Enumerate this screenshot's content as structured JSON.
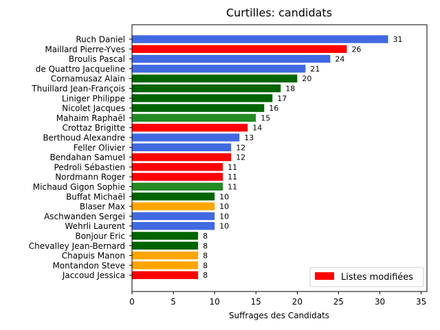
{
  "chart_data": {
    "type": "bar",
    "orientation": "horizontal",
    "title": "Curtilles: candidats",
    "xlabel": "Suffrages des Candidats",
    "ylabel": "",
    "xlim": [
      0,
      35.7
    ],
    "xticks": [
      0,
      5,
      10,
      15,
      20,
      25,
      30,
      35
    ],
    "grid": false,
    "legend": {
      "placement": "lower-right",
      "entries": [
        {
          "label": "Listes modifiées",
          "color": "#ff0000"
        }
      ]
    },
    "bars": [
      {
        "name": "Ruch Daniel",
        "value": 31,
        "color": "#4169e1"
      },
      {
        "name": "Maillard Pierre-Yves",
        "value": 26,
        "color": "#ff0000"
      },
      {
        "name": "Broulis Pascal",
        "value": 24,
        "color": "#4169e1"
      },
      {
        "name": "de Quattro Jacqueline",
        "value": 21,
        "color": "#4169e1"
      },
      {
        "name": "Cornamusaz Alain",
        "value": 20,
        "color": "#006400"
      },
      {
        "name": "Thuillard Jean-François",
        "value": 18,
        "color": "#006400"
      },
      {
        "name": "Liniger Philippe",
        "value": 17,
        "color": "#006400"
      },
      {
        "name": "Nicolet Jacques",
        "value": 16,
        "color": "#006400"
      },
      {
        "name": "Mahaim Raphaël",
        "value": 15,
        "color": "#228b22"
      },
      {
        "name": "Crottaz Brigitte",
        "value": 14,
        "color": "#ff0000"
      },
      {
        "name": "Berthoud Alexandre",
        "value": 13,
        "color": "#4169e1"
      },
      {
        "name": "Feller Olivier",
        "value": 12,
        "color": "#4169e1"
      },
      {
        "name": "Bendahan Samuel",
        "value": 12,
        "color": "#ff0000"
      },
      {
        "name": "Pedroli Sébastien",
        "value": 11,
        "color": "#ff0000"
      },
      {
        "name": "Nordmann Roger",
        "value": 11,
        "color": "#ff0000"
      },
      {
        "name": "Michaud Gigon Sophie",
        "value": 11,
        "color": "#228b22"
      },
      {
        "name": "Buffat Michaël",
        "value": 10,
        "color": "#006400"
      },
      {
        "name": "Blaser Max",
        "value": 10,
        "color": "#ffa500"
      },
      {
        "name": "Aschwanden Sergei",
        "value": 10,
        "color": "#4169e1"
      },
      {
        "name": "Wehrli Laurent",
        "value": 10,
        "color": "#4169e1"
      },
      {
        "name": "Bonjour Eric",
        "value": 8,
        "color": "#006400"
      },
      {
        "name": "Chevalley Jean-Bernard",
        "value": 8,
        "color": "#006400"
      },
      {
        "name": "Chapuis Manon",
        "value": 8,
        "color": "#ffa500"
      },
      {
        "name": "Montandon Steve",
        "value": 8,
        "color": "#ffa500"
      },
      {
        "name": "Jaccoud Jessica",
        "value": 8,
        "color": "#ff0000"
      }
    ]
  }
}
